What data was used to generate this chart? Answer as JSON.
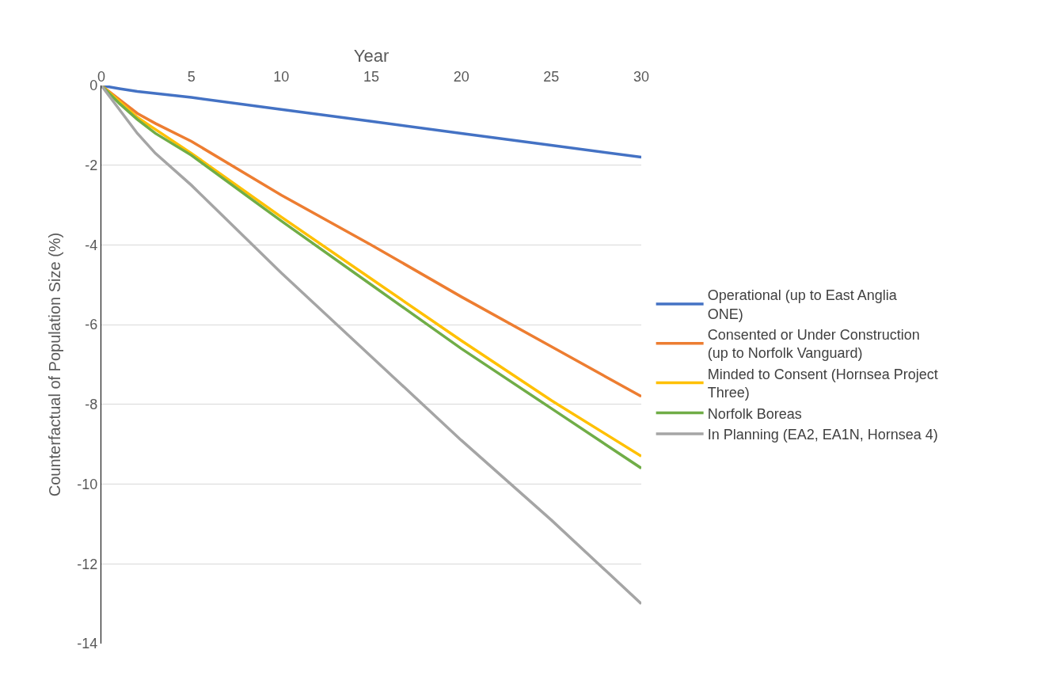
{
  "chart_data": {
    "type": "line",
    "xlabel": "Year",
    "ylabel": "Counterfactual of Population Size (%)",
    "xlim": [
      0,
      30
    ],
    "xticks": [
      0,
      5,
      10,
      15,
      20,
      25,
      30
    ],
    "ylim": [
      -14,
      0
    ],
    "yticks": [
      -14,
      -12,
      -10,
      -8,
      -6,
      -4,
      -2,
      0
    ],
    "grid": "y",
    "legend": "right",
    "marker": "none",
    "line_style": "solid",
    "x": [
      0,
      1,
      2,
      3,
      5,
      10,
      15,
      20,
      25,
      30
    ],
    "series": [
      {
        "name": "Operational (up to East Anglia ONE)",
        "color": "#4472c4",
        "values": [
          0,
          -0.08,
          -0.15,
          -0.2,
          -0.3,
          -0.6,
          -0.9,
          -1.2,
          -1.5,
          -1.8
        ]
      },
      {
        "name": "Consented or Under Construction (up to Norfolk Vanguard)",
        "color": "#ed7d31",
        "values": [
          0,
          -0.35,
          -0.7,
          -0.95,
          -1.4,
          -2.75,
          -4.0,
          -5.3,
          -6.55,
          -7.8
        ]
      },
      {
        "name": "Minded to Consent (Hornsea Project Three)",
        "color": "#ffc000",
        "values": [
          0,
          -0.4,
          -0.8,
          -1.1,
          -1.7,
          -3.3,
          -4.85,
          -6.4,
          -7.9,
          -9.3
        ]
      },
      {
        "name": "Norfolk Boreas",
        "color": "#70ad47",
        "values": [
          0,
          -0.45,
          -0.85,
          -1.2,
          -1.75,
          -3.4,
          -5.0,
          -6.6,
          -8.1,
          -9.6
        ]
      },
      {
        "name": "In Planning (EA2, EA1N, Hornsea 4)",
        "color": "#a5a5a5",
        "values": [
          0,
          -0.6,
          -1.2,
          -1.7,
          -2.5,
          -4.7,
          -6.8,
          -8.9,
          -10.9,
          -13.0
        ]
      }
    ]
  }
}
